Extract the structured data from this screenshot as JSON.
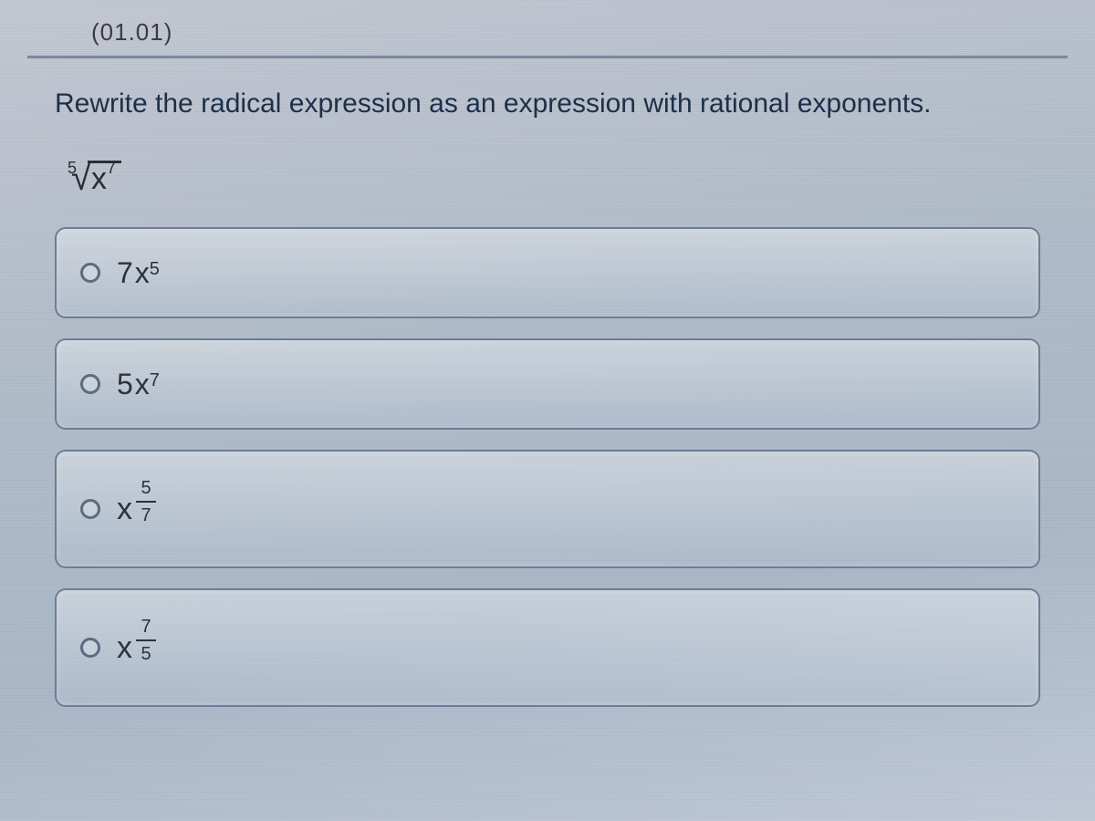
{
  "topFragment": "(01.01)",
  "prompt": "Rewrite the radical expression as an expression with rational exponents.",
  "radical": {
    "index": "5",
    "base": "x",
    "exponent": "7"
  },
  "options": [
    {
      "kind": "coeffPow",
      "coeff": "7",
      "base": "x",
      "exp": "5"
    },
    {
      "kind": "coeffPow",
      "coeff": "5",
      "base": "x",
      "exp": "7"
    },
    {
      "kind": "fracPow",
      "base": "x",
      "num": "5",
      "den": "7"
    },
    {
      "kind": "fracPow",
      "base": "x",
      "num": "7",
      "den": "5"
    }
  ],
  "style": {
    "accentBorder": "#6d7d96",
    "textColor": "#1d2f4a",
    "bgGradientTop": "#c4c8d2",
    "bgGradientBottom": "#c0cad8"
  }
}
